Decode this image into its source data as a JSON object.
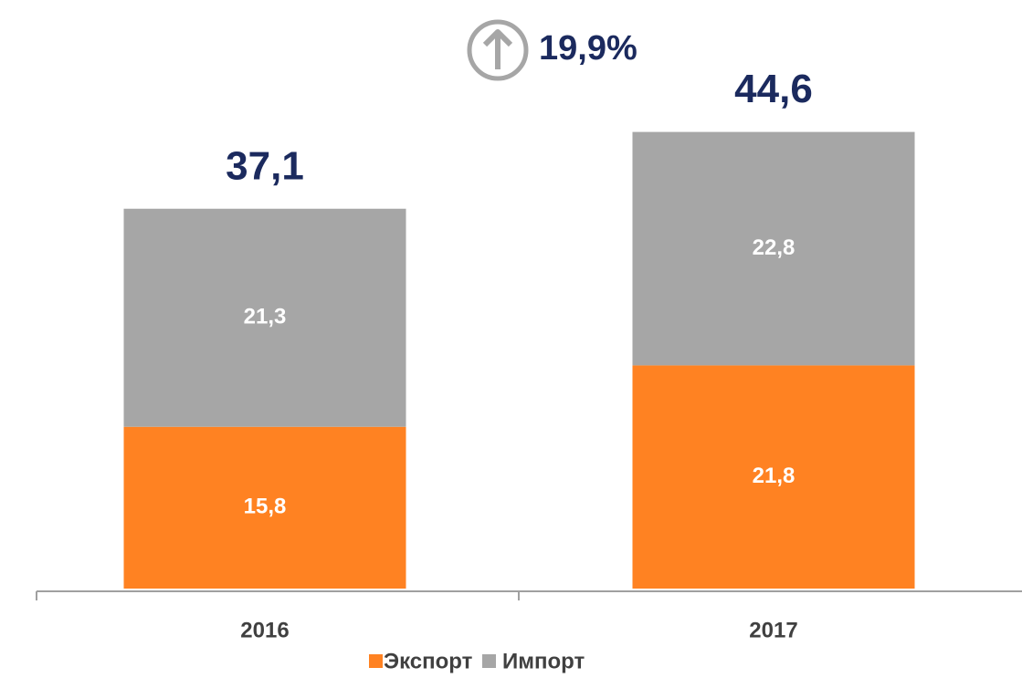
{
  "chart_data": {
    "type": "stacked_bar",
    "categories": [
      "2016",
      "2017"
    ],
    "series": [
      {
        "name": "Экспорт",
        "color": "#ff8222",
        "values": [
          15.8,
          21.8
        ],
        "value_labels": [
          "15,8",
          "21,8"
        ]
      },
      {
        "name": "Импорт",
        "color": "#a6a6a6",
        "values": [
          21.3,
          22.8
        ],
        "value_labels": [
          "21,3",
          "22,8"
        ]
      }
    ],
    "totals": [
      37.1,
      44.6
    ],
    "total_labels": [
      "37,1",
      "44,6"
    ],
    "annotation": "19,9%",
    "ylim": [
      0,
      50
    ]
  }
}
